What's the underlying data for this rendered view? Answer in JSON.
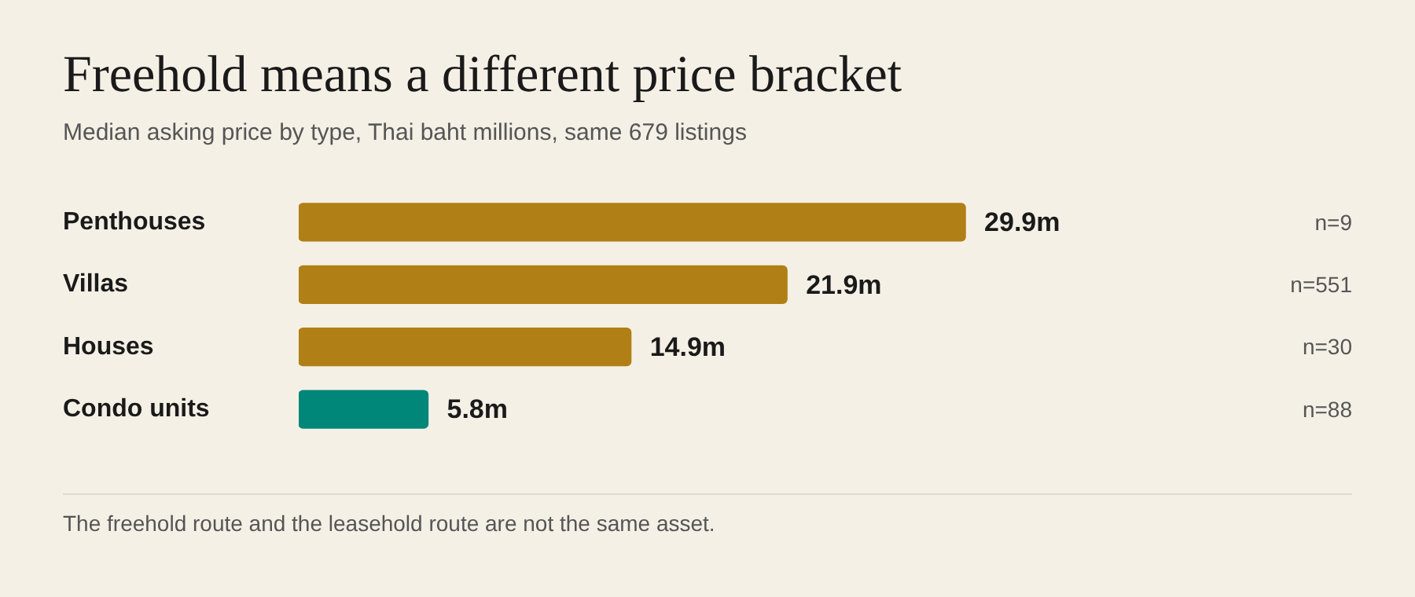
{
  "chart_data": {
    "type": "bar",
    "orientation": "horizontal",
    "title": "Freehold means a different price bracket",
    "subtitle": "Median asking price by type, Thai baht millions, same 679 listings",
    "categories": [
      "Penthouses",
      "Villas",
      "Houses",
      "Condo units"
    ],
    "values": [
      29.9,
      21.9,
      14.9,
      5.8
    ],
    "colors": [
      "#b07f16",
      "#b07f16",
      "#b07f16",
      "#00877a"
    ],
    "value_labels": [
      "29.9m",
      "21.9m",
      "14.9m",
      "5.8m"
    ],
    "tick_labels": "y",
    "legend": false,
    "annotations": [
      "n=9",
      "n=551",
      "n=30",
      "n=88",
      "The freehold route and the leasehold route are not the same asset."
    ]
  }
}
